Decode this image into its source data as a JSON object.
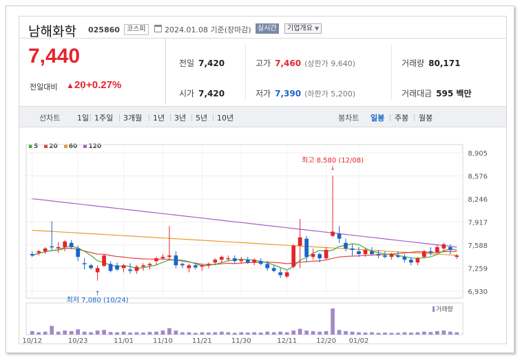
{
  "header": {
    "company_name": "남해화학",
    "code": "025860",
    "market": "코스피",
    "date": "2024.01.08",
    "date_suffix": "기준(장마감)",
    "realtime_label": "실시간",
    "company_info_label": "기업개요"
  },
  "quote": {
    "price": "7,440",
    "change_label": "전일대비",
    "change_value": "20",
    "change_pct": "+0.27%"
  },
  "stats": {
    "prev_close": {
      "label": "전일",
      "value": "7,420"
    },
    "high": {
      "label": "고가",
      "value": "7,460",
      "sub": "(상한가 9,640)"
    },
    "volume": {
      "label": "거래량",
      "value": "80,171"
    },
    "open": {
      "label": "시가",
      "value": "7,420"
    },
    "low": {
      "label": "저가",
      "value": "7,390",
      "sub": "(하한가 5,200)"
    },
    "amount": {
      "label": "거래대금",
      "value": "595 백만"
    }
  },
  "tabs": {
    "line_chart_label": "선차트",
    "periods": [
      "1일",
      "1주일",
      "3개월",
      "1년",
      "3년",
      "5년",
      "10년"
    ],
    "candle_chart_label": "봉차트",
    "candle_periods": [
      "일봉",
      "주봉",
      "월봉"
    ],
    "active_candle_period": "일봉"
  },
  "colors": {
    "up": "#e5242c",
    "down": "#1a64c8",
    "ma5": "#41a841",
    "ma20": "#e24444",
    "ma60": "#e89a2c",
    "ma120": "#a35ec9",
    "volume": "#9f8ac9"
  },
  "chart_data": {
    "type": "candlestick",
    "legend": [
      "5",
      "20",
      "60",
      "120"
    ],
    "y_ticks": [
      "8,905",
      "8,576",
      "8,246",
      "7,917",
      "7,588",
      "7,259",
      "6,930"
    ],
    "ylim": [
      6930,
      8905
    ],
    "x_ticks": [
      "10/12",
      "10/23",
      "11/01",
      "11/10",
      "11/21",
      "11/30",
      "12/11",
      "12/20",
      "01/02"
    ],
    "x_tick_index": [
      0,
      7,
      14,
      20,
      26,
      32,
      39,
      45,
      50
    ],
    "high_annotation": "최고 8,580 (12/08)",
    "low_annotation": "최저 7,080 (10/24)",
    "volume_label": "거래량",
    "candles": [
      [
        7460,
        7500,
        7420,
        7440,
        12
      ],
      [
        7480,
        7520,
        7440,
        7500,
        8
      ],
      [
        7500,
        7560,
        7460,
        7540,
        10
      ],
      [
        7570,
        7930,
        7520,
        7560,
        30
      ],
      [
        7540,
        7630,
        7480,
        7560,
        10
      ],
      [
        7560,
        7660,
        7500,
        7640,
        14
      ],
      [
        7620,
        7660,
        7530,
        7560,
        12
      ],
      [
        7540,
        7580,
        7360,
        7420,
        18
      ],
      [
        7330,
        7400,
        7240,
        7320,
        10
      ],
      [
        7300,
        7320,
        7240,
        7260,
        8
      ],
      [
        7200,
        7300,
        7080,
        7260,
        14
      ],
      [
        7290,
        7460,
        7280,
        7440,
        16
      ],
      [
        7320,
        7360,
        7200,
        7220,
        9
      ],
      [
        7300,
        7340,
        7220,
        7240,
        8
      ],
      [
        7260,
        7320,
        7200,
        7300,
        10
      ],
      [
        7240,
        7330,
        7180,
        7220,
        7
      ],
      [
        7220,
        7300,
        7180,
        7280,
        8
      ],
      [
        7280,
        7330,
        7220,
        7300,
        7
      ],
      [
        7300,
        7340,
        7240,
        7320,
        9
      ],
      [
        7360,
        7420,
        7300,
        7400,
        10
      ],
      [
        7400,
        7460,
        7380,
        7420,
        14
      ],
      [
        7420,
        7860,
        7380,
        7440,
        22
      ],
      [
        7440,
        7500,
        7260,
        7300,
        14
      ],
      [
        7320,
        7340,
        7260,
        7300,
        8
      ],
      [
        7260,
        7320,
        7200,
        7300,
        8
      ],
      [
        7300,
        7340,
        7240,
        7270,
        6
      ],
      [
        7280,
        7320,
        7220,
        7300,
        8
      ],
      [
        7300,
        7340,
        7260,
        7320,
        7
      ],
      [
        7340,
        7400,
        7300,
        7380,
        8
      ],
      [
        7380,
        7440,
        7340,
        7420,
        10
      ],
      [
        7400,
        7440,
        7360,
        7400,
        8
      ],
      [
        7400,
        7440,
        7320,
        7360,
        6
      ],
      [
        7360,
        7420,
        7320,
        7380,
        8
      ],
      [
        7380,
        7420,
        7320,
        7340,
        7
      ],
      [
        7340,
        7400,
        7300,
        7380,
        8
      ],
      [
        7360,
        7400,
        7300,
        7320,
        7
      ],
      [
        7320,
        7360,
        7220,
        7260,
        10
      ],
      [
        7260,
        7300,
        7200,
        7220,
        8
      ],
      [
        7200,
        7260,
        7120,
        7160,
        10
      ],
      [
        7140,
        7220,
        7120,
        7200,
        8
      ],
      [
        7280,
        7600,
        7260,
        7580,
        14
      ],
      [
        7580,
        7960,
        7260,
        7700,
        20
      ],
      [
        7680,
        7720,
        7340,
        7420,
        14
      ],
      [
        7420,
        7540,
        7380,
        7460,
        12
      ],
      [
        7460,
        7480,
        7340,
        7400,
        10
      ],
      [
        7400,
        7560,
        7380,
        7520,
        12
      ],
      [
        7720,
        8580,
        7700,
        7780,
        90
      ],
      [
        7750,
        7860,
        7620,
        7680,
        16
      ],
      [
        7620,
        7680,
        7500,
        7540,
        12
      ],
      [
        7540,
        7600,
        7440,
        7520,
        10
      ],
      [
        7500,
        7560,
        7420,
        7460,
        8
      ],
      [
        7460,
        7540,
        7420,
        7520,
        7
      ],
      [
        7500,
        7560,
        7440,
        7460,
        8
      ],
      [
        7460,
        7520,
        7400,
        7440,
        6
      ],
      [
        7440,
        7500,
        7400,
        7420,
        7
      ],
      [
        7420,
        7480,
        7380,
        7460,
        6
      ],
      [
        7440,
        7500,
        7400,
        7420,
        6
      ],
      [
        7420,
        7460,
        7340,
        7380,
        8
      ],
      [
        7380,
        7420,
        7300,
        7340,
        7
      ],
      [
        7340,
        7420,
        7300,
        7400,
        8
      ],
      [
        7420,
        7520,
        7400,
        7500,
        10
      ],
      [
        7500,
        7560,
        7440,
        7480,
        9
      ],
      [
        7480,
        7600,
        7460,
        7560,
        12
      ],
      [
        7540,
        7620,
        7500,
        7600,
        14
      ],
      [
        7560,
        7600,
        7460,
        7520,
        10
      ],
      [
        7420,
        7460,
        7390,
        7440,
        8
      ]
    ]
  }
}
